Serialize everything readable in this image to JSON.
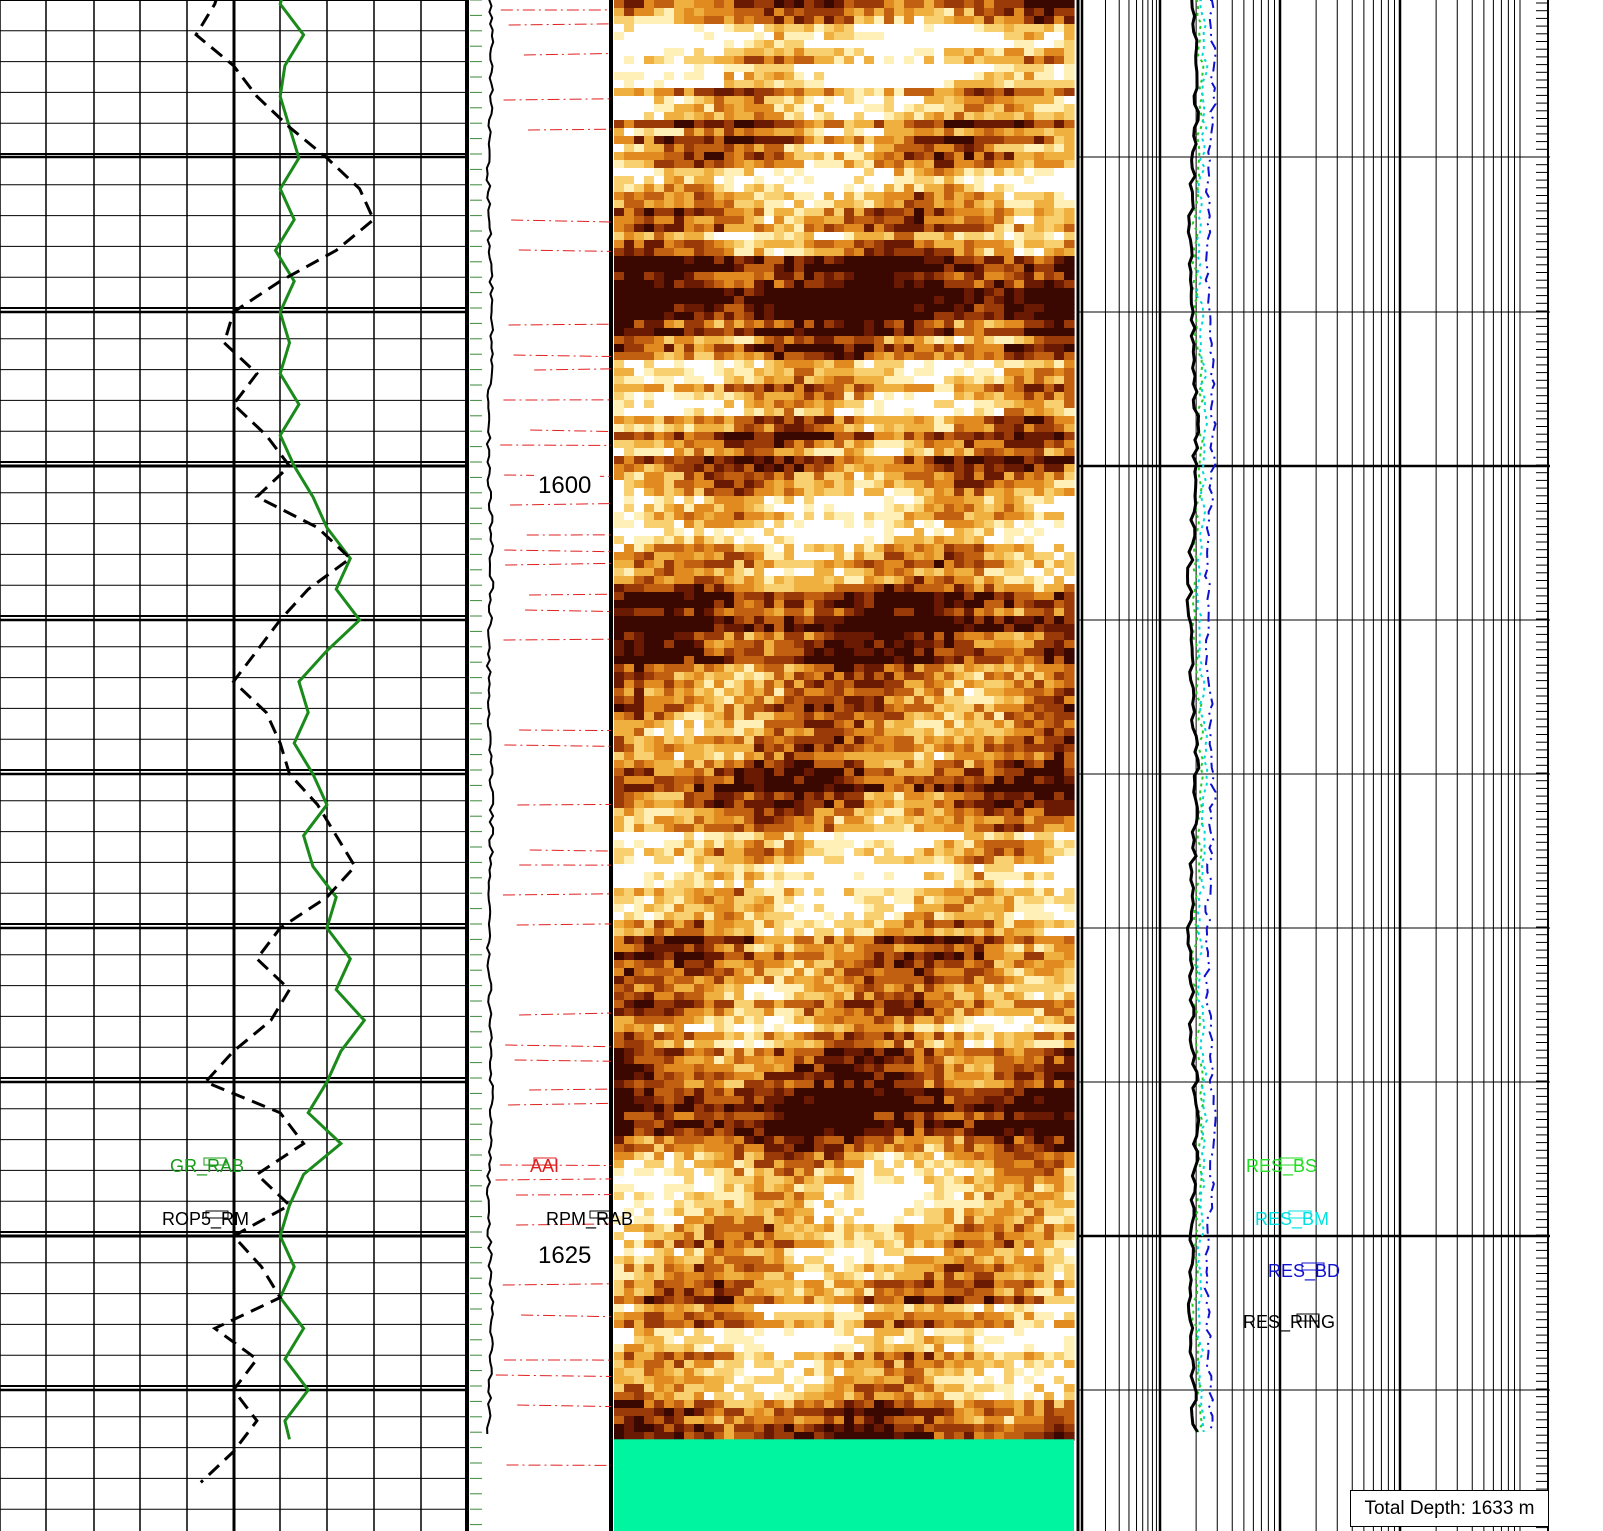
{
  "chart_data": {
    "type": "line",
    "title": "",
    "depth_unit": "m",
    "depth_range": [
      1570,
      1633
    ],
    "depth_ticks": [
      {
        "depth": 1600,
        "label": "1600"
      },
      {
        "depth": 1625,
        "label": "1625"
      }
    ],
    "total_depth_label": "Total Depth: 1633 m",
    "tracks": {
      "left": {
        "series": [
          {
            "name": "GR_RAB",
            "color": "#1a8a1a",
            "dash": "solid",
            "label_color": "#1a9a1a",
            "points": [
              [
                1570,
                0.595
              ],
              [
                1571,
                0.57
              ],
              [
                1572,
                0.6
              ],
              [
                1573,
                0.62
              ],
              [
                1574,
                0.58
              ],
              [
                1575,
                0.6
              ],
              [
                1576,
                0.63
              ],
              [
                1577,
                0.6
              ],
              [
                1578,
                0.63
              ],
              [
                1579,
                0.6
              ],
              [
                1580,
                0.64
              ],
              [
                1581,
                0.61
              ],
              [
                1582,
                0.63
              ],
              [
                1583,
                0.58
              ],
              [
                1584,
                0.62
              ],
              [
                1585,
                0.6
              ],
              [
                1586,
                0.65
              ],
              [
                1587,
                0.61
              ],
              [
                1588,
                0.6
              ],
              [
                1589,
                0.62
              ],
              [
                1590,
                0.64
              ],
              [
                1591,
                0.6
              ],
              [
                1592,
                0.63
              ],
              [
                1593,
                0.59
              ],
              [
                1594,
                0.63
              ],
              [
                1595,
                0.6
              ],
              [
                1596,
                0.62
              ],
              [
                1597,
                0.6
              ],
              [
                1598,
                0.64
              ],
              [
                1599,
                0.6
              ],
              [
                1600,
                0.63
              ],
              [
                1601,
                0.67
              ],
              [
                1602,
                0.7
              ],
              [
                1603,
                0.75
              ],
              [
                1604,
                0.72
              ],
              [
                1605,
                0.77
              ],
              [
                1606,
                0.7
              ],
              [
                1607,
                0.64
              ],
              [
                1608,
                0.66
              ],
              [
                1609,
                0.63
              ],
              [
                1610,
                0.67
              ],
              [
                1611,
                0.7
              ],
              [
                1612,
                0.65
              ],
              [
                1613,
                0.67
              ],
              [
                1614,
                0.72
              ],
              [
                1615,
                0.7
              ],
              [
                1616,
                0.75
              ],
              [
                1617,
                0.72
              ],
              [
                1618,
                0.78
              ],
              [
                1619,
                0.73
              ],
              [
                1620,
                0.7
              ],
              [
                1621,
                0.66
              ],
              [
                1622,
                0.73
              ],
              [
                1623,
                0.65
              ],
              [
                1624,
                0.62
              ],
              [
                1625,
                0.6
              ],
              [
                1626,
                0.63
              ],
              [
                1627,
                0.6
              ],
              [
                1628,
                0.65
              ],
              [
                1629,
                0.61
              ],
              [
                1630,
                0.66
              ],
              [
                1631,
                0.61
              ],
              [
                1631.6,
                0.62
              ]
            ]
          },
          {
            "name": "ROP5_RM",
            "color": "#000000",
            "dash": "dashed",
            "label_color": "#000000",
            "points": [
              [
                1570,
                0.55
              ],
              [
                1570.5,
                0.67
              ],
              [
                1571,
                0.58
              ],
              [
                1572,
                0.62
              ],
              [
                1573,
                0.53
              ],
              [
                1574,
                0.48
              ],
              [
                1575,
                0.56
              ],
              [
                1576,
                0.5
              ],
              [
                1577,
                0.57
              ],
              [
                1578,
                0.54
              ],
              [
                1579,
                0.62
              ],
              [
                1580,
                0.6
              ],
              [
                1581,
                0.7
              ],
              [
                1582,
                0.55
              ],
              [
                1583,
                0.5
              ],
              [
                1584,
                0.48
              ],
              [
                1585,
                0.46
              ],
              [
                1586,
                0.42
              ],
              [
                1587,
                0.5
              ],
              [
                1588,
                0.55
              ],
              [
                1589,
                0.62
              ],
              [
                1590,
                0.7
              ],
              [
                1591,
                0.77
              ],
              [
                1592,
                0.8
              ],
              [
                1593,
                0.72
              ],
              [
                1594,
                0.6
              ],
              [
                1595,
                0.5
              ],
              [
                1596,
                0.48
              ],
              [
                1597,
                0.55
              ],
              [
                1598,
                0.5
              ],
              [
                1599,
                0.57
              ],
              [
                1600,
                0.62
              ],
              [
                1601,
                0.55
              ],
              [
                1602,
                0.68
              ],
              [
                1603,
                0.75
              ],
              [
                1604,
                0.66
              ],
              [
                1605,
                0.6
              ],
              [
                1606,
                0.55
              ],
              [
                1607,
                0.5
              ],
              [
                1608,
                0.57
              ],
              [
                1609,
                0.6
              ],
              [
                1610,
                0.62
              ],
              [
                1611,
                0.68
              ],
              [
                1612,
                0.72
              ],
              [
                1613,
                0.76
              ],
              [
                1614,
                0.7
              ],
              [
                1615,
                0.6
              ],
              [
                1616,
                0.55
              ],
              [
                1617,
                0.62
              ],
              [
                1618,
                0.58
              ],
              [
                1619,
                0.5
              ],
              [
                1620,
                0.44
              ],
              [
                1621,
                0.6
              ],
              [
                1622,
                0.65
              ],
              [
                1623,
                0.55
              ],
              [
                1624,
                0.62
              ],
              [
                1625,
                0.5
              ],
              [
                1626,
                0.56
              ],
              [
                1627,
                0.6
              ],
              [
                1628,
                0.46
              ],
              [
                1629,
                0.55
              ],
              [
                1630,
                0.5
              ],
              [
                1631,
                0.55
              ],
              [
                1632,
                0.5
              ],
              [
                1633,
                0.43
              ]
            ]
          }
        ]
      },
      "middle": {
        "series": [
          {
            "name": "RPM_RAB",
            "color": "#000000",
            "label_color": "#000000"
          },
          {
            "name": "AAI",
            "color": "#e02020",
            "label_color": "#e02020"
          }
        ]
      },
      "image": {
        "description_colors": {
          "dark": "#3a0800",
          "mid": "#b06010",
          "light": "#fff0c0"
        },
        "end_depth": 1631.6,
        "below_end_color": "#00f5a0"
      },
      "resistivity": {
        "scale": "log",
        "series": [
          {
            "name": "RES_BS",
            "color": "#22cc22",
            "label_color": "#22dd22"
          },
          {
            "name": "RES_BM",
            "color": "#00d8d8",
            "label_color": "#00e0e0"
          },
          {
            "name": "RES_BD",
            "color": "#1010d0",
            "label_color": "#1010d0"
          },
          {
            "name": "RES_RING",
            "color": "#000000",
            "label_color": "#000000"
          }
        ]
      }
    }
  }
}
